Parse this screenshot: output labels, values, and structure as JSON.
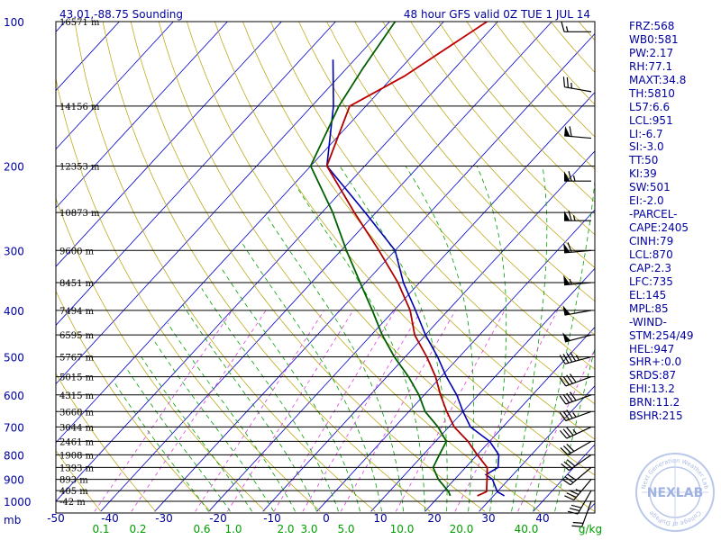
{
  "header": {
    "left_title": "43.01,-88.75 Sounding",
    "right_title": "48 hour GFS valid 0Z TUE  1 JUL 14"
  },
  "stats": [
    "FRZ:568",
    "WB0:581",
    "PW:2.17",
    "RH:77.1",
    "MAXT:34.8",
    "TH:5810",
    "L57:6.6",
    "LCL:951",
    "LI:-6.7",
    "SI:-3.0",
    "TT:50",
    "KI:39",
    "SW:501",
    "EI:-2.0",
    "-PARCEL-",
    "CAPE:2405",
    "CINH:79",
    "LCL:870",
    "CAP:2.3",
    "LFC:735",
    "EL:145",
    "MPL:85",
    "-WIND-",
    "STM:254/49",
    "HEL:947",
    "SHR+:0.0",
    "SRDS:87",
    "EHI:13.2",
    "BRN:11.2",
    "BSHR:215"
  ],
  "logo": {
    "text": "NEXLAB",
    "ring_top": "Next Generation Weather Lab",
    "ring_bottom": "College of DuPage"
  },
  "colors": {
    "isobar": "#000000",
    "isotherm": "#0000cc",
    "dry_adiabat": "#b8a000",
    "moist_adiabat": "#00a000",
    "mixing_ratio": "#e040e0",
    "temperature": "#b00000",
    "dewpoint": "#006000",
    "virtual_temperature": "#0000b0",
    "parcel": "#c00000",
    "wind_barb": "#000000"
  },
  "chart_data": {
    "type": "skew-t",
    "pressure_unit_label": "mb",
    "pressure_ticks": [
      "100",
      "200",
      "300",
      "400",
      "500",
      "600",
      "700",
      "800",
      "900",
      "1000"
    ],
    "height_levels": [
      {
        "p": 100,
        "label": "16571 m"
      },
      {
        "p": 150,
        "label": "14156 m"
      },
      {
        "p": 200,
        "label": "12353 m"
      },
      {
        "p": 250,
        "label": "10873 m"
      },
      {
        "p": 300,
        "label": "9600 m"
      },
      {
        "p": 350,
        "label": "8451 m"
      },
      {
        "p": 400,
        "label": "7494 m"
      },
      {
        "p": 450,
        "label": "6595 m"
      },
      {
        "p": 500,
        "label": "5767 m"
      },
      {
        "p": 550,
        "label": "5015 m"
      },
      {
        "p": 600,
        "label": "4315 m"
      },
      {
        "p": 650,
        "label": "3660 m"
      },
      {
        "p": 700,
        "label": "3044 m"
      },
      {
        "p": 750,
        "label": "2461 m"
      },
      {
        "p": 800,
        "label": "1908 m"
      },
      {
        "p": 850,
        "label": "1393 m"
      },
      {
        "p": 900,
        "label": "893 m"
      },
      {
        "p": 950,
        "label": "405 m"
      },
      {
        "p": 1000,
        "label": "-42 m"
      }
    ],
    "temperature_ticks": [
      "-50",
      "-40",
      "-30",
      "-20",
      "-10",
      "0",
      "10",
      "20",
      "30",
      "40"
    ],
    "mixing_ratio_labels": [
      "0.1",
      "0.2",
      "0.6",
      "1.0",
      "2.0",
      "3.0",
      "5.0",
      "10.0",
      "20.0",
      "40.0"
    ],
    "mixing_ratio_unit": "g/kg",
    "temperature_profile": [
      [
        974,
        27
      ],
      [
        955,
        28
      ],
      [
        900,
        26
      ],
      [
        850,
        24
      ],
      [
        800,
        20
      ],
      [
        750,
        16
      ],
      [
        700,
        11
      ],
      [
        650,
        7
      ],
      [
        600,
        3
      ],
      [
        550,
        -1
      ],
      [
        500,
        -6
      ],
      [
        450,
        -12
      ],
      [
        400,
        -17
      ],
      [
        350,
        -24
      ],
      [
        300,
        -33
      ],
      [
        250,
        -44
      ],
      [
        200,
        -57
      ],
      [
        150,
        -63
      ]
    ],
    "dewpoint_profile": [
      [
        974,
        22
      ],
      [
        955,
        21
      ],
      [
        900,
        17
      ],
      [
        850,
        14
      ],
      [
        800,
        13
      ],
      [
        750,
        12
      ],
      [
        700,
        8
      ],
      [
        650,
        3
      ],
      [
        600,
        -1
      ],
      [
        550,
        -6
      ],
      [
        500,
        -12
      ],
      [
        450,
        -18
      ],
      [
        400,
        -24
      ],
      [
        350,
        -31
      ],
      [
        300,
        -39
      ],
      [
        250,
        -48
      ],
      [
        200,
        -60
      ],
      [
        150,
        -65
      ],
      [
        125,
        -67
      ],
      [
        100,
        -69
      ]
    ],
    "virtual_temperature_profile": [
      [
        974,
        32
      ],
      [
        955,
        30
      ],
      [
        900,
        27
      ],
      [
        880,
        25
      ],
      [
        850,
        26
      ],
      [
        800,
        24
      ],
      [
        750,
        20
      ],
      [
        700,
        14
      ],
      [
        650,
        10
      ],
      [
        600,
        6
      ],
      [
        550,
        1
      ],
      [
        500,
        -4
      ],
      [
        450,
        -10
      ],
      [
        400,
        -16
      ],
      [
        350,
        -23
      ],
      [
        300,
        -30
      ],
      [
        250,
        -42
      ],
      [
        200,
        -57
      ],
      [
        150,
        -66
      ],
      [
        120,
        -74
      ]
    ],
    "parcel_profile": [
      [
        150,
        -63
      ],
      [
        130,
        -58
      ],
      [
        100,
        -52
      ]
    ],
    "wind_barbs": [
      {
        "p": 105,
        "dir": 270,
        "speed": 15
      },
      {
        "p": 140,
        "dir": 280,
        "speed": 25
      },
      {
        "p": 175,
        "dir": 275,
        "speed": 60
      },
      {
        "p": 215,
        "dir": 270,
        "speed": 65
      },
      {
        "p": 260,
        "dir": 270,
        "speed": 65
      },
      {
        "p": 300,
        "dir": 265,
        "speed": 60
      },
      {
        "p": 350,
        "dir": 265,
        "speed": 55
      },
      {
        "p": 400,
        "dir": 260,
        "speed": 50
      },
      {
        "p": 450,
        "dir": 255,
        "speed": 50
      },
      {
        "p": 500,
        "dir": 255,
        "speed": 45
      },
      {
        "p": 550,
        "dir": 250,
        "speed": 40
      },
      {
        "p": 600,
        "dir": 250,
        "speed": 40
      },
      {
        "p": 650,
        "dir": 250,
        "speed": 35
      },
      {
        "p": 700,
        "dir": 245,
        "speed": 35
      },
      {
        "p": 750,
        "dir": 240,
        "speed": 30
      },
      {
        "p": 800,
        "dir": 235,
        "speed": 30
      },
      {
        "p": 850,
        "dir": 230,
        "speed": 30
      },
      {
        "p": 900,
        "dir": 220,
        "speed": 35
      },
      {
        "p": 950,
        "dir": 210,
        "speed": 30
      },
      {
        "p": 1000,
        "dir": 200,
        "speed": 20
      }
    ]
  }
}
